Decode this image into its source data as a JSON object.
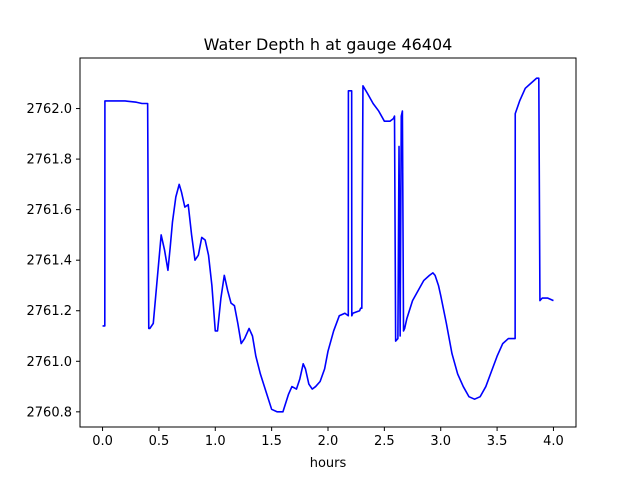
{
  "chart_data": {
    "type": "line",
    "title": "Water Depth h at gauge 46404",
    "xlabel": "hours",
    "ylabel": "",
    "xlim": [
      -0.2,
      4.2
    ],
    "ylim": [
      2760.74,
      2762.2
    ],
    "xticks": [
      0.0,
      0.5,
      1.0,
      1.5,
      2.0,
      2.5,
      3.0,
      3.5,
      4.0
    ],
    "xtick_labels": [
      "0.0",
      "0.5",
      "1.0",
      "1.5",
      "2.0",
      "2.5",
      "3.0",
      "3.5",
      "4.0"
    ],
    "yticks": [
      2760.8,
      2761.0,
      2761.2,
      2761.4,
      2761.6,
      2761.8,
      2762.0
    ],
    "ytick_labels": [
      "2760.8",
      "2761.0",
      "2761.2",
      "2761.4",
      "2761.6",
      "2761.8",
      "2762.0"
    ],
    "grid": false,
    "series": [
      {
        "color": "#0000ff",
        "x": [
          0.0,
          0.02,
          0.021,
          0.1,
          0.2,
          0.3,
          0.35,
          0.4,
          0.41,
          0.42,
          0.45,
          0.48,
          0.52,
          0.55,
          0.58,
          0.6,
          0.62,
          0.65,
          0.68,
          0.7,
          0.73,
          0.76,
          0.79,
          0.82,
          0.85,
          0.88,
          0.91,
          0.94,
          0.97,
          1.0,
          1.02,
          1.05,
          1.08,
          1.11,
          1.14,
          1.17,
          1.2,
          1.23,
          1.26,
          1.3,
          1.33,
          1.36,
          1.4,
          1.45,
          1.5,
          1.55,
          1.6,
          1.65,
          1.68,
          1.72,
          1.75,
          1.78,
          1.8,
          1.83,
          1.86,
          1.89,
          1.93,
          1.97,
          2.0,
          2.05,
          2.1,
          2.15,
          2.18,
          2.181,
          2.21,
          2.211,
          2.22,
          2.28,
          2.29,
          2.3,
          2.31,
          2.35,
          2.4,
          2.45,
          2.5,
          2.55,
          2.58,
          2.59,
          2.6,
          2.62,
          2.63,
          2.64,
          2.65,
          2.66,
          2.67,
          2.68,
          2.7,
          2.75,
          2.8,
          2.85,
          2.9,
          2.93,
          2.95,
          2.98,
          3.0,
          3.05,
          3.1,
          3.15,
          3.2,
          3.25,
          3.3,
          3.35,
          3.4,
          3.45,
          3.5,
          3.55,
          3.6,
          3.66,
          3.661,
          3.7,
          3.75,
          3.8,
          3.85,
          3.87,
          3.88,
          3.9,
          3.95,
          4.0
        ],
        "y": [
          2761.14,
          2761.14,
          2762.03,
          2762.03,
          2762.03,
          2762.025,
          2762.02,
          2762.02,
          2761.13,
          2761.13,
          2761.15,
          2761.3,
          2761.5,
          2761.44,
          2761.36,
          2761.45,
          2761.55,
          2761.65,
          2761.7,
          2761.67,
          2761.61,
          2761.62,
          2761.5,
          2761.4,
          2761.42,
          2761.49,
          2761.48,
          2761.42,
          2761.3,
          2761.12,
          2761.12,
          2761.25,
          2761.34,
          2761.28,
          2761.23,
          2761.22,
          2761.15,
          2761.07,
          2761.09,
          2761.13,
          2761.1,
          2761.02,
          2760.95,
          2760.88,
          2760.81,
          2760.8,
          2760.8,
          2760.87,
          2760.9,
          2760.89,
          2760.93,
          2760.99,
          2760.97,
          2760.91,
          2760.89,
          2760.9,
          2760.92,
          2760.97,
          2761.04,
          2761.12,
          2761.18,
          2761.19,
          2761.18,
          2762.07,
          2762.07,
          2761.18,
          2761.19,
          2761.2,
          2761.21,
          2761.21,
          2762.09,
          2762.06,
          2762.02,
          2761.99,
          2761.95,
          2761.95,
          2761.96,
          2761.97,
          2761.08,
          2761.09,
          2761.85,
          2761.1,
          2761.97,
          2761.99,
          2761.12,
          2761.13,
          2761.17,
          2761.24,
          2761.28,
          2761.32,
          2761.34,
          2761.35,
          2761.34,
          2761.3,
          2761.26,
          2761.15,
          2761.03,
          2760.95,
          2760.9,
          2760.86,
          2760.85,
          2760.86,
          2760.9,
          2760.96,
          2761.02,
          2761.07,
          2761.09,
          2761.09,
          2761.98,
          2762.03,
          2762.08,
          2762.1,
          2762.12,
          2762.12,
          2761.24,
          2761.25,
          2761.25,
          2761.24
        ]
      }
    ]
  }
}
